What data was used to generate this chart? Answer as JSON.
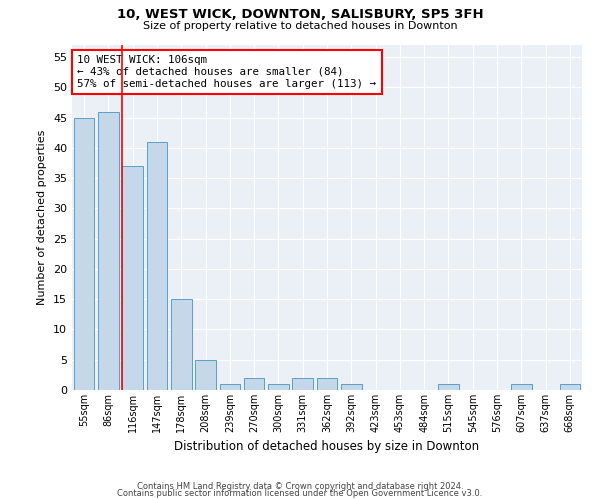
{
  "title": "10, WEST WICK, DOWNTON, SALISBURY, SP5 3FH",
  "subtitle": "Size of property relative to detached houses in Downton",
  "xlabel": "Distribution of detached houses by size in Downton",
  "ylabel": "Number of detached properties",
  "bin_labels": [
    "55sqm",
    "86sqm",
    "116sqm",
    "147sqm",
    "178sqm",
    "208sqm",
    "239sqm",
    "270sqm",
    "300sqm",
    "331sqm",
    "362sqm",
    "392sqm",
    "423sqm",
    "453sqm",
    "484sqm",
    "515sqm",
    "545sqm",
    "576sqm",
    "607sqm",
    "637sqm",
    "668sqm"
  ],
  "bar_heights": [
    45,
    46,
    37,
    41,
    15,
    5,
    1,
    2,
    1,
    2,
    2,
    1,
    0,
    0,
    0,
    1,
    0,
    0,
    1,
    0,
    1
  ],
  "bar_color": "#c5d8ea",
  "bar_edge_color": "#5a9ec9",
  "red_line_bin_index": 2,
  "annotation_text": "10 WEST WICK: 106sqm\n← 43% of detached houses are smaller (84)\n57% of semi-detached houses are larger (113) →",
  "annotation_box_color": "white",
  "annotation_box_edge_color": "red",
  "ylim": [
    0,
    57
  ],
  "yticks": [
    0,
    5,
    10,
    15,
    20,
    25,
    30,
    35,
    40,
    45,
    50,
    55
  ],
  "footer_line1": "Contains HM Land Registry data © Crown copyright and database right 2024.",
  "footer_line2": "Contains public sector information licensed under the Open Government Licence v3.0.",
  "plot_bg_color": "#eaf0f6"
}
